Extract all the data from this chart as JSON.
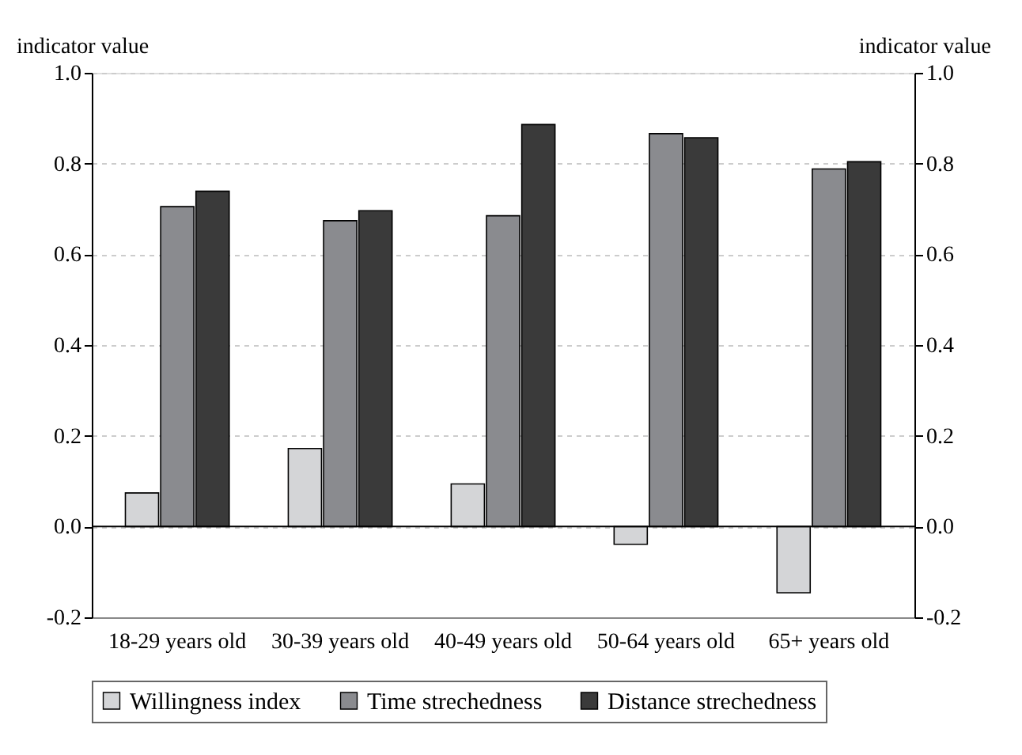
{
  "chart_data": {
    "type": "bar",
    "categories": [
      "18-29 years old",
      "30-39 years old",
      "40-49 years old",
      "50-64 years old",
      "65+ years old"
    ],
    "series": [
      {
        "name": "Willingness index",
        "color": "#d4d5d7",
        "values": [
          0.074,
          0.172,
          0.094,
          -0.039,
          -0.146
        ]
      },
      {
        "name": "Time strechedness",
        "color": "#8a8b8f",
        "values": [
          0.705,
          0.674,
          0.685,
          0.866,
          0.788
        ]
      },
      {
        "name": "Distance strechedness",
        "color": "#3a3a3a",
        "values": [
          0.739,
          0.696,
          0.886,
          0.857,
          0.804
        ]
      }
    ],
    "ylabel": "indicator value",
    "y2label": "indicator value",
    "ylim": [
      -0.2,
      1.0
    ],
    "yticks": [
      {
        "value": -0.2,
        "label": "-0.2"
      },
      {
        "value": 0,
        "label": "0.0"
      },
      {
        "value": 0.2,
        "label": "0.2"
      },
      {
        "value": 0.4,
        "label": "0.4"
      },
      {
        "value": 0.6,
        "label": "0.6"
      },
      {
        "value": 0.8,
        "label": "0.8"
      },
      {
        "value": 1.0,
        "label": "1.0"
      }
    ],
    "y2lim": [
      -0.2,
      1.0
    ],
    "y2ticks": [
      {
        "value": -0.2,
        "label": "-0.2"
      },
      {
        "value": 0,
        "label": "0.0"
      },
      {
        "value": 0.2,
        "label": "0.2"
      },
      {
        "value": 0.4,
        "label": "0.4"
      },
      {
        "value": 0.6,
        "label": "0.6"
      },
      {
        "value": 0.8,
        "label": "0.8"
      },
      {
        "value": 1.0,
        "label": "1.0"
      }
    ],
    "ref_lines": [
      {
        "axis": "y",
        "value": 0,
        "color": "#000000"
      }
    ],
    "grid": "y",
    "legend": "bottom"
  }
}
